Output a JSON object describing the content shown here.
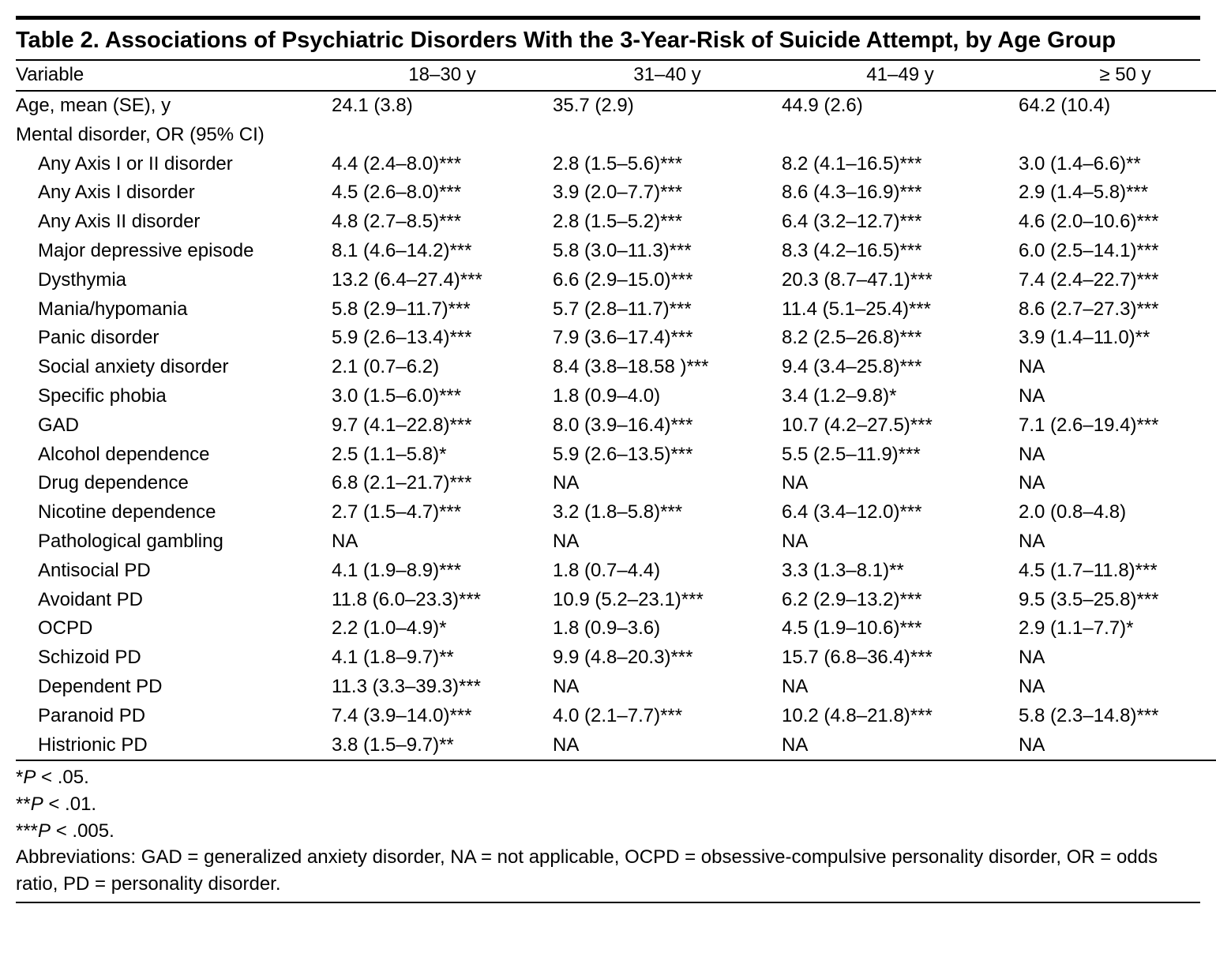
{
  "title": "Table 2. Associations of Psychiatric Disorders With the 3-Year-Risk of Suicide Attempt, by Age Group",
  "columns": {
    "var": "Variable",
    "c1": "18–30 y",
    "c2": "31–40 y",
    "c3": "41–49 y",
    "c4": "≥ 50 y"
  },
  "age_row": {
    "label": "Age, mean (SE), y",
    "c1": "24.1 (3.8)",
    "c2": "35.7 (2.9)",
    "c3": "44.9 (2.6)",
    "c4": "64.2 (10.4)"
  },
  "section_label": "Mental disorder, OR (95% CI)",
  "rows": [
    {
      "label": "Any Axis I or II disorder",
      "c1": "4.4 (2.4–8.0)***",
      "c2": "2.8 (1.5–5.6)***",
      "c3": "8.2 (4.1–16.5)***",
      "c4": "3.0 (1.4–6.6)**"
    },
    {
      "label": "Any Axis I disorder",
      "c1": "4.5 (2.6–8.0)***",
      "c2": "3.9 (2.0–7.7)***",
      "c3": "8.6 (4.3–16.9)***",
      "c4": "2.9 (1.4–5.8)***"
    },
    {
      "label": "Any Axis II disorder",
      "c1": "4.8 (2.7–8.5)***",
      "c2": "2.8 (1.5–5.2)***",
      "c3": "6.4 (3.2–12.7)***",
      "c4": "4.6 (2.0–10.6)***"
    },
    {
      "label": "Major depressive episode",
      "c1": "8.1 (4.6–14.2)***",
      "c2": "5.8 (3.0–11.3)***",
      "c3": "8.3 (4.2–16.5)***",
      "c4": "6.0 (2.5–14.1)***"
    },
    {
      "label": "Dysthymia",
      "c1": "13.2 (6.4–27.4)***",
      "c2": "6.6 (2.9–15.0)***",
      "c3": "20.3 (8.7–47.1)***",
      "c4": "7.4 (2.4–22.7)***"
    },
    {
      "label": "Mania/hypomania",
      "c1": "5.8 (2.9–11.7)***",
      "c2": "5.7 (2.8–11.7)***",
      "c3": "11.4 (5.1–25.4)***",
      "c4": "8.6 (2.7–27.3)***"
    },
    {
      "label": "Panic disorder",
      "c1": "5.9 (2.6–13.4)***",
      "c2": "7.9 (3.6–17.4)***",
      "c3": "8.2 (2.5–26.8)***",
      "c4": "3.9 (1.4–11.0)**"
    },
    {
      "label": "Social anxiety disorder",
      "c1": "2.1 (0.7–6.2)",
      "c2": "8.4 (3.8–18.58 )***",
      "c3": "9.4 (3.4–25.8)***",
      "c4": "NA"
    },
    {
      "label": "Specific phobia",
      "c1": "3.0 (1.5–6.0)***",
      "c2": "1.8 (0.9–4.0)",
      "c3": "3.4 (1.2–9.8)*",
      "c4": "NA"
    },
    {
      "label": "GAD",
      "c1": "9.7 (4.1–22.8)***",
      "c2": "8.0 (3.9–16.4)***",
      "c3": "10.7 (4.2–27.5)***",
      "c4": "7.1 (2.6–19.4)***"
    },
    {
      "label": "Alcohol dependence",
      "c1": "2.5 (1.1–5.8)*",
      "c2": "5.9 (2.6–13.5)***",
      "c3": "5.5 (2.5–11.9)***",
      "c4": "NA"
    },
    {
      "label": "Drug dependence",
      "c1": "6.8 (2.1–21.7)***",
      "c2": "NA",
      "c3": "NA",
      "c4": "NA"
    },
    {
      "label": "Nicotine dependence",
      "c1": "2.7 (1.5–4.7)***",
      "c2": "3.2 (1.8–5.8)***",
      "c3": "6.4 (3.4–12.0)***",
      "c4": "2.0 (0.8–4.8)"
    },
    {
      "label": "Pathological gambling",
      "c1": "NA",
      "c2": "NA",
      "c3": "NA",
      "c4": "NA"
    },
    {
      "label": "Antisocial PD",
      "c1": "4.1 (1.9–8.9)***",
      "c2": "1.8 (0.7–4.4)",
      "c3": "3.3 (1.3–8.1)**",
      "c4": "4.5 (1.7–11.8)***"
    },
    {
      "label": "Avoidant PD",
      "c1": "11.8 (6.0–23.3)***",
      "c2": "10.9 (5.2–23.1)***",
      "c3": "6.2 (2.9–13.2)***",
      "c4": "9.5 (3.5–25.8)***"
    },
    {
      "label": "OCPD",
      "c1": "2.2 (1.0–4.9)*",
      "c2": "1.8 (0.9–3.6)",
      "c3": "4.5 (1.9–10.6)***",
      "c4": "2.9 (1.1–7.7)*"
    },
    {
      "label": "Schizoid PD",
      "c1": "4.1 (1.8–9.7)**",
      "c2": "9.9 (4.8–20.3)***",
      "c3": "15.7 (6.8–36.4)***",
      "c4": "NA"
    },
    {
      "label": "Dependent PD",
      "c1": "11.3 (3.3–39.3)***",
      "c2": "NA",
      "c3": "NA",
      "c4": "NA"
    },
    {
      "label": "Paranoid PD",
      "c1": "7.4 (3.9–14.0)***",
      "c2": "4.0 (2.1–7.7)***",
      "c3": "10.2 (4.8–21.8)***",
      "c4": "5.8 (2.3–14.8)***"
    },
    {
      "label": "Histrionic PD",
      "c1": "3.8 (1.5–9.7)**",
      "c2": "NA",
      "c3": "NA",
      "c4": "NA"
    }
  ],
  "footnotes": {
    "f1_pre": "*",
    "f1_p": "P",
    "f1_post": " < .05.",
    "f2_pre": "**",
    "f2_p": "P",
    "f2_post": " < .01.",
    "f3_pre": "***",
    "f3_p": "P",
    "f3_post": " < .005.",
    "abbrev": "Abbreviations: GAD = generalized anxiety disorder, NA = not applicable, OCPD = obsessive-compulsive personality disorder, OR = odds ratio, PD = personality disorder."
  }
}
